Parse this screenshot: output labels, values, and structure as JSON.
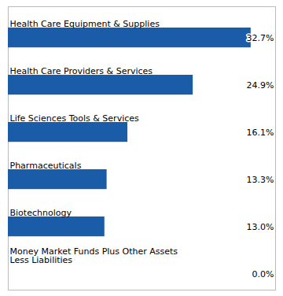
{
  "chart_data": {
    "type": "bar",
    "orientation": "horizontal",
    "categories": [
      "Health Care Equipment & Supplies",
      "Health Care Providers & Services",
      "Life Sciences Tools & Services",
      "Pharmaceuticals",
      "Biotechnology",
      "Money Market Funds Plus Other Assets\nLess Liabilities"
    ],
    "values": [
      32.7,
      24.9,
      16.1,
      13.3,
      13.0,
      0.0
    ],
    "value_labels": [
      "32.7%",
      "24.9%",
      "16.1%",
      "13.3%",
      "13.0%",
      "0.0%"
    ],
    "data_labels": true,
    "color": "#1a5ca8",
    "xlim": [
      0,
      36
    ],
    "tick_labels": false
  }
}
